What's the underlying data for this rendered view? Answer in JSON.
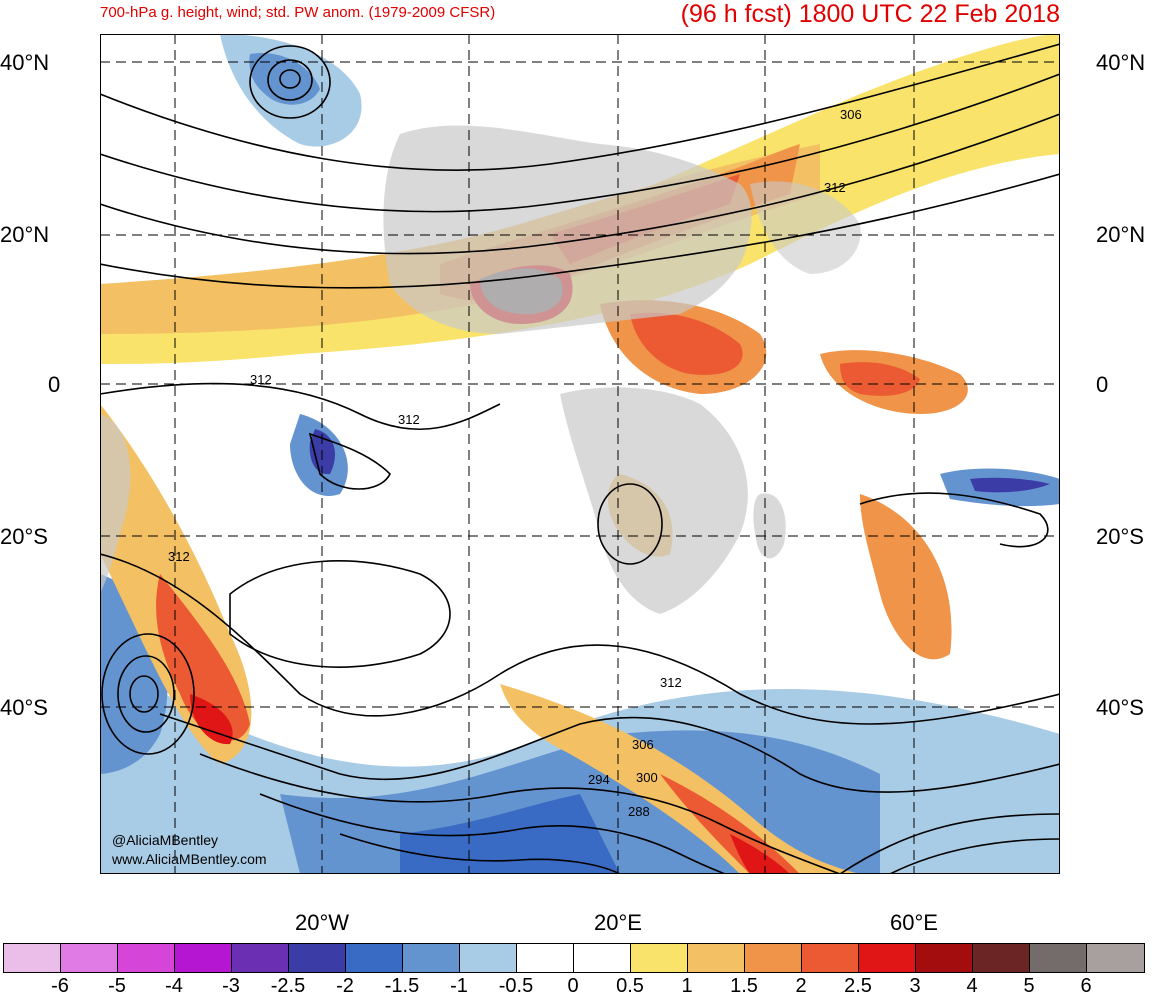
{
  "title_left": "700-hPa g. height, wind; std. PW anom. (1979-2009 CFSR)",
  "title_right": "(96 h fcst) 1800 UTC 22 Feb 2018",
  "lat_labels": [
    "40°N",
    "20°N",
    "0",
    "20°S",
    "40°S"
  ],
  "lon_labels": [
    "20°W",
    "20°E",
    "60°E"
  ],
  "credits": [
    "@AliciaMBentley",
    "www.AliciaMBentley.com"
  ],
  "contour_labels": [
    "306",
    "312",
    "312",
    "312",
    "312",
    "312",
    "306",
    "300",
    "294",
    "288"
  ],
  "colorbar": {
    "ticks": [
      "-6",
      "-5",
      "-4",
      "-3",
      "-2.5",
      "-2",
      "-1.5",
      "-1",
      "-0.5",
      "0",
      "0.5",
      "1",
      "1.5",
      "2",
      "2.5",
      "3",
      "4",
      "5",
      "6"
    ],
    "colors": [
      "#ebbde9",
      "#e07be6",
      "#d545d8",
      "#b516d2",
      "#6a2fb2",
      "#3c3ca6",
      "#3a6bc4",
      "#6494d0",
      "#a8cbe6",
      "#ffffff",
      "#ffffff",
      "#f9e36b",
      "#f3c163",
      "#ef9449",
      "#ec5a33",
      "#e01515",
      "#a40d0d",
      "#6b2525",
      "#746b6b",
      "#a89f9f"
    ]
  }
}
